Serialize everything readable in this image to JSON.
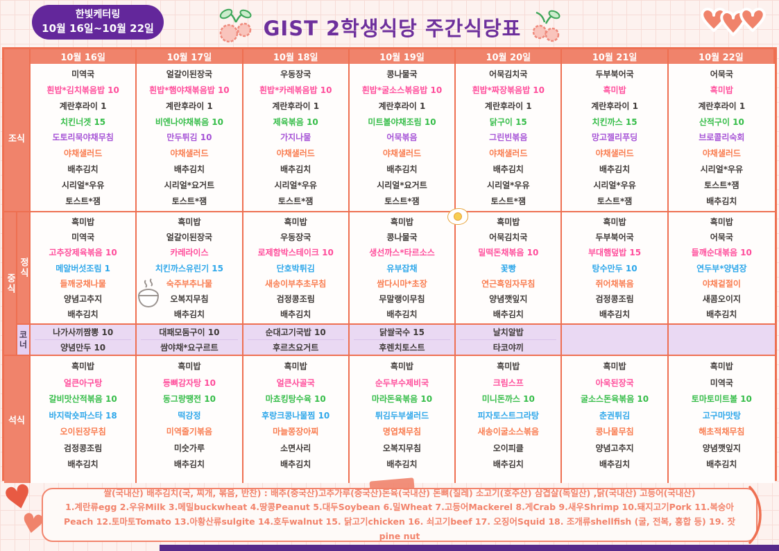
{
  "header": {
    "badge_line1": "한빛케터링",
    "badge_line2": "10월 16일~10월 22일",
    "title": "GIST 2학생식당 주간식당표"
  },
  "icons": {
    "cherry_left": "cherry-doodle",
    "cherry_right": "cherry-doodle",
    "hearts_logo": "triple-heart-logo",
    "fried_egg": "fried-egg-doodle",
    "rice_bowl": "rice-bowl-doodle",
    "heart_doodle": "heart-doodle"
  },
  "colors": {
    "accent_salmon": "#f0836b",
    "border_orange": "#ee6f51",
    "badge_purple": "#63279b",
    "title_purple": "#6d2f9c",
    "corner_lavender": "#ead9f3",
    "item_pink": "#ff4d9b",
    "item_green": "#36bd49",
    "item_purple": "#a653d6",
    "item_orange": "#f97c4f",
    "item_blue": "#2ea7ea",
    "footer_text": "#f2836b"
  },
  "table": {
    "days": [
      "10월 16일",
      "10월 17일",
      "10월 18일",
      "10월 19일",
      "10월 20일",
      "10월 21일",
      "10월 22일"
    ],
    "labels": {
      "breakfast": "조식",
      "lunch_group": "중식",
      "lunch_main": "정식",
      "corner": "코너",
      "dinner": "석식"
    },
    "breakfast": {
      "columns": [
        [
          {
            "t": "미역국",
            "c": "k"
          },
          {
            "t": "흰밥*김치볶음밥 10",
            "c": "p"
          },
          {
            "t": "계란후라이 1",
            "c": "k"
          },
          {
            "t": "치킨너겟 15",
            "c": "g"
          },
          {
            "t": "도토리묵야채무침",
            "c": "v"
          },
          {
            "t": "야채샐러드",
            "c": "o"
          },
          {
            "t": "배추김치",
            "c": "k"
          },
          {
            "t": "시리얼*우유",
            "c": "k"
          },
          {
            "t": "토스트*잼",
            "c": "k"
          }
        ],
        [
          {
            "t": "얼갈이된장국",
            "c": "k"
          },
          {
            "t": "흰밥*햄야채볶음밥 10",
            "c": "p"
          },
          {
            "t": "계란후라이 1",
            "c": "k"
          },
          {
            "t": "비엔나야채볶음 10",
            "c": "g"
          },
          {
            "t": "만두튀김 10",
            "c": "v"
          },
          {
            "t": "야채샐러드",
            "c": "o"
          },
          {
            "t": "배추김치",
            "c": "k"
          },
          {
            "t": "시리얼*요거트",
            "c": "k"
          },
          {
            "t": "토스트*잼",
            "c": "k"
          }
        ],
        [
          {
            "t": "우동장국",
            "c": "k"
          },
          {
            "t": "흰밥*카레볶음밥 10",
            "c": "p"
          },
          {
            "t": "계란후라이 1",
            "c": "k"
          },
          {
            "t": "제육볶음 10",
            "c": "g"
          },
          {
            "t": "가지나물",
            "c": "v"
          },
          {
            "t": "야채샐러드",
            "c": "o"
          },
          {
            "t": "배추김치",
            "c": "k"
          },
          {
            "t": "시리얼*우유",
            "c": "k"
          },
          {
            "t": "토스트*잼",
            "c": "k"
          }
        ],
        [
          {
            "t": "콩나물국",
            "c": "k"
          },
          {
            "t": "흰밥*굴소스볶음밥 10",
            "c": "p"
          },
          {
            "t": "계란후라이 1",
            "c": "k"
          },
          {
            "t": "미트볼야채조림 10",
            "c": "g"
          },
          {
            "t": "어묵볶음",
            "c": "v"
          },
          {
            "t": "야채샐러드",
            "c": "o"
          },
          {
            "t": "배추김치",
            "c": "k"
          },
          {
            "t": "시리얼*요거트",
            "c": "k"
          },
          {
            "t": "토스트*잼",
            "c": "k"
          }
        ],
        [
          {
            "t": "어묵김치국",
            "c": "k"
          },
          {
            "t": "흰밥*짜장볶음밥 10",
            "c": "p"
          },
          {
            "t": "계란후라이 1",
            "c": "k"
          },
          {
            "t": "닭구이 15",
            "c": "g"
          },
          {
            "t": "그린빈볶음",
            "c": "v"
          },
          {
            "t": "야채샐러드",
            "c": "o"
          },
          {
            "t": "배추김치",
            "c": "k"
          },
          {
            "t": "시리얼*우유",
            "c": "k"
          },
          {
            "t": "토스트*잼",
            "c": "k"
          }
        ],
        [
          {
            "t": "두부북어국",
            "c": "k"
          },
          {
            "t": "흑미밥",
            "c": "p"
          },
          {
            "t": "계란후라이 1",
            "c": "k"
          },
          {
            "t": "치킨까스 15",
            "c": "g"
          },
          {
            "t": "망고젤리푸딩",
            "c": "v"
          },
          {
            "t": "야채샐러드",
            "c": "o"
          },
          {
            "t": "배추김치",
            "c": "k"
          },
          {
            "t": "시리얼*우유",
            "c": "k"
          },
          {
            "t": "토스트*잼",
            "c": "k"
          }
        ],
        [
          {
            "t": "어묵국",
            "c": "k"
          },
          {
            "t": "흑미밥",
            "c": "p"
          },
          {
            "t": "계란후라이 1",
            "c": "k"
          },
          {
            "t": "산적구이 10",
            "c": "g"
          },
          {
            "t": "브로콜리숙회",
            "c": "v"
          },
          {
            "t": "야채샐러드",
            "c": "o"
          },
          {
            "t": "시리얼*우유",
            "c": "k"
          },
          {
            "t": "토스트*잼",
            "c": "k"
          },
          {
            "t": "배추김치",
            "c": "k"
          }
        ]
      ]
    },
    "lunch": {
      "columns": [
        [
          {
            "t": "흑미밥",
            "c": "k"
          },
          {
            "t": "미역국",
            "c": "k"
          },
          {
            "t": "고추장제육볶음 10",
            "c": "p"
          },
          {
            "t": "메알버섯조림 1",
            "c": "b"
          },
          {
            "t": "들깨궁채나물",
            "c": "o"
          },
          {
            "t": "양념고추지",
            "c": "k"
          },
          {
            "t": "배추김치",
            "c": "k"
          }
        ],
        [
          {
            "t": "흑미밥",
            "c": "k"
          },
          {
            "t": "얼갈이된장국",
            "c": "k"
          },
          {
            "t": "카레라이스",
            "c": "p"
          },
          {
            "t": "치킨까스유린기 15",
            "c": "b"
          },
          {
            "t": "숙주부추나물",
            "c": "o"
          },
          {
            "t": "오복지무침",
            "c": "k"
          },
          {
            "t": "배추김치",
            "c": "k"
          }
        ],
        [
          {
            "t": "흑미밥",
            "c": "k"
          },
          {
            "t": "우동장국",
            "c": "k"
          },
          {
            "t": "로제함박스테이크 10",
            "c": "p"
          },
          {
            "t": "단호박튀김",
            "c": "b"
          },
          {
            "t": "새송이부추초무침",
            "c": "o"
          },
          {
            "t": "검정콩조림",
            "c": "k"
          },
          {
            "t": "배추김치",
            "c": "k"
          }
        ],
        [
          {
            "t": "흑미밥",
            "c": "k"
          },
          {
            "t": "콩나물국",
            "c": "k"
          },
          {
            "t": "생선까스*타르소스",
            "c": "p"
          },
          {
            "t": "유부잡채",
            "c": "b"
          },
          {
            "t": "쌈다시마*초장",
            "c": "o"
          },
          {
            "t": "무말랭이무침",
            "c": "k"
          },
          {
            "t": "배추김치",
            "c": "k"
          }
        ],
        [
          {
            "t": "흑미밥",
            "c": "k"
          },
          {
            "t": "어묵김치국",
            "c": "k"
          },
          {
            "t": "밀떡돈채볶음 10",
            "c": "p"
          },
          {
            "t": "꽃빵",
            "c": "b"
          },
          {
            "t": "연근흑임자무침",
            "c": "o"
          },
          {
            "t": "양념깻잎지",
            "c": "k"
          },
          {
            "t": "배추김치",
            "c": "k"
          }
        ],
        [
          {
            "t": "흑미밥",
            "c": "k"
          },
          {
            "t": "두부북어국",
            "c": "k"
          },
          {
            "t": "부대햄덮밥 15",
            "c": "p"
          },
          {
            "t": "탕수만두 10",
            "c": "b"
          },
          {
            "t": "쥐어채볶음",
            "c": "o"
          },
          {
            "t": "검정콩조림",
            "c": "k"
          },
          {
            "t": "배추김치",
            "c": "k"
          }
        ],
        [
          {
            "t": "흑미밥",
            "c": "k"
          },
          {
            "t": "어묵국",
            "c": "k"
          },
          {
            "t": "들깨순대볶음 10",
            "c": "p"
          },
          {
            "t": "연두부*양념장",
            "c": "b"
          },
          {
            "t": "야채겉절이",
            "c": "o"
          },
          {
            "t": "새콤오이지",
            "c": "k"
          },
          {
            "t": "배추김치",
            "c": "k"
          }
        ]
      ]
    },
    "corner": {
      "columns": [
        [
          {
            "t": "나가사끼짬뽕 10",
            "c": "k"
          },
          {
            "t": "양념만두 10",
            "c": "k"
          }
        ],
        [
          {
            "t": "대패모둠구이 10",
            "c": "k"
          },
          {
            "t": "쌈야채*요구르트",
            "c": "k"
          }
        ],
        [
          {
            "t": "순대고기국밥 10",
            "c": "k"
          },
          {
            "t": "후르츠요거트",
            "c": "k"
          }
        ],
        [
          {
            "t": "닭쌀국수 15",
            "c": "k"
          },
          {
            "t": "후렌치토스트",
            "c": "k"
          }
        ],
        [
          {
            "t": "날치알밥",
            "c": "k"
          },
          {
            "t": "타코야끼",
            "c": "k"
          }
        ],
        [],
        []
      ]
    },
    "dinner": {
      "columns": [
        [
          {
            "t": "흑미밥",
            "c": "k"
          },
          {
            "t": "얼큰아구탕",
            "c": "p"
          },
          {
            "t": "갈비맛산적볶음 10",
            "c": "g"
          },
          {
            "t": "바지락숏파스타 18",
            "c": "b"
          },
          {
            "t": "오이된장무침",
            "c": "o"
          },
          {
            "t": "검정콩조림",
            "c": "k"
          },
          {
            "t": "배추김치",
            "c": "k"
          }
        ],
        [
          {
            "t": "흑미밥",
            "c": "k"
          },
          {
            "t": "등뼈감자탕 10",
            "c": "p"
          },
          {
            "t": "동그랑땡전 10",
            "c": "g"
          },
          {
            "t": "떡강정",
            "c": "b"
          },
          {
            "t": "미역줄기볶음",
            "c": "o"
          },
          {
            "t": "미숫가루",
            "c": "k"
          },
          {
            "t": "배추김치",
            "c": "k"
          }
        ],
        [
          {
            "t": "흑미밥",
            "c": "k"
          },
          {
            "t": "얼큰사골국",
            "c": "p"
          },
          {
            "t": "마쵸킹탕수육 10",
            "c": "g"
          },
          {
            "t": "후랑크콩나물찜 10",
            "c": "b"
          },
          {
            "t": "마늘쫑장아찌",
            "c": "o"
          },
          {
            "t": "소면사리",
            "c": "k"
          },
          {
            "t": "배추김치",
            "c": "k"
          }
        ],
        [
          {
            "t": "흑미밥",
            "c": "k"
          },
          {
            "t": "순두부수제비국",
            "c": "p"
          },
          {
            "t": "마라돈육볶음 10",
            "c": "g"
          },
          {
            "t": "튀김두부샐러드",
            "c": "b"
          },
          {
            "t": "명엽채무침",
            "c": "o"
          },
          {
            "t": "오복지무침",
            "c": "k"
          },
          {
            "t": "배추김치",
            "c": "k"
          }
        ],
        [
          {
            "t": "흑미밥",
            "c": "k"
          },
          {
            "t": "크림스프",
            "c": "p"
          },
          {
            "t": "미니돈까스 10",
            "c": "g"
          },
          {
            "t": "피자토스트그라탕",
            "c": "b"
          },
          {
            "t": "새송이굴소스볶음",
            "c": "o"
          },
          {
            "t": "오이피클",
            "c": "k"
          },
          {
            "t": "배추김치",
            "c": "k"
          }
        ],
        [
          {
            "t": "흑미밥",
            "c": "k"
          },
          {
            "t": "아욱된장국",
            "c": "p"
          },
          {
            "t": "굴소스돈육볶음 10",
            "c": "g"
          },
          {
            "t": "춘권튀김",
            "c": "b"
          },
          {
            "t": "콩나물무침",
            "c": "o"
          },
          {
            "t": "양념고추지",
            "c": "k"
          },
          {
            "t": "배추김치",
            "c": "k"
          }
        ],
        [
          {
            "t": "흑미밥",
            "c": "k"
          },
          {
            "t": "미역국",
            "c": "k"
          },
          {
            "t": "토마토미트볼 10",
            "c": "g"
          },
          {
            "t": "고구마맛탕",
            "c": "b"
          },
          {
            "t": "해초적채무침",
            "c": "o"
          },
          {
            "t": "양념깻잎지",
            "c": "k"
          },
          {
            "t": "배추김치",
            "c": "k"
          }
        ]
      ]
    }
  },
  "footer": {
    "line1": "쌀(국내산) 배추김치(국, 찌개, 볶음, 반찬) : 배추(중국산)고추가루(중국산)돈육(국내산) 돈뼈(칠레) 소고기(호주산) 삼겹살(독일산) ,닭(국내산) 고등어(국내산)",
    "line2": "1.계란류egg 2.우유Milk 3.메밀buckwheat 4.땅콩Peanut 5.대두Soybean 6.밀Wheat 7.고등어Mackerel 8.게Crab 9.새우Shrimp 10.돼지고기Pork 11.복숭아Peach 12.토마토Tomato 13.아황산류sulgite 14.호두walnut 15. 닭고기chicken 16. 쇠고기beef 17. 오징어Squid 18. 조개류shellfish (굴, 전복, 홍합 등) 19. 잣pine nut"
  }
}
